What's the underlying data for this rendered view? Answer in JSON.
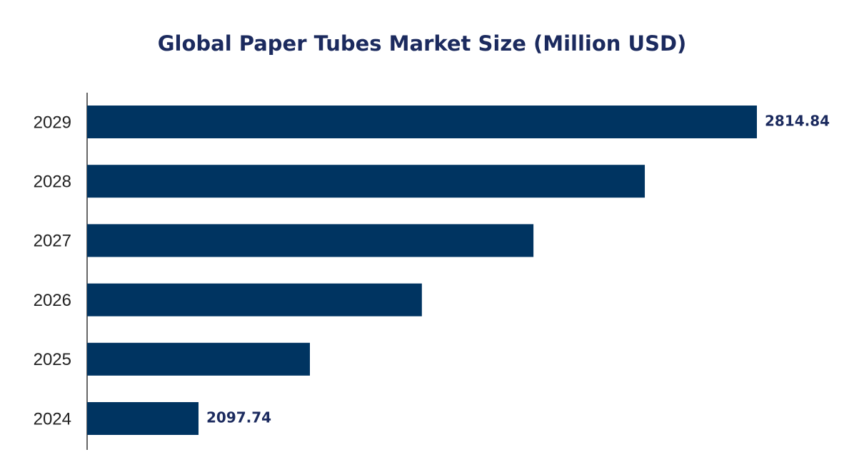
{
  "chart_data": {
    "type": "bar",
    "orientation": "horizontal",
    "title": "Global Paper Tubes Market Size (Million USD)",
    "categories": [
      "2024",
      "2025",
      "2026",
      "2027",
      "2028",
      "2029"
    ],
    "values": [
      2097.74,
      2240.8,
      2384.6,
      2527.9,
      2670.9,
      2814.84
    ],
    "color": "#003461"
  }
}
